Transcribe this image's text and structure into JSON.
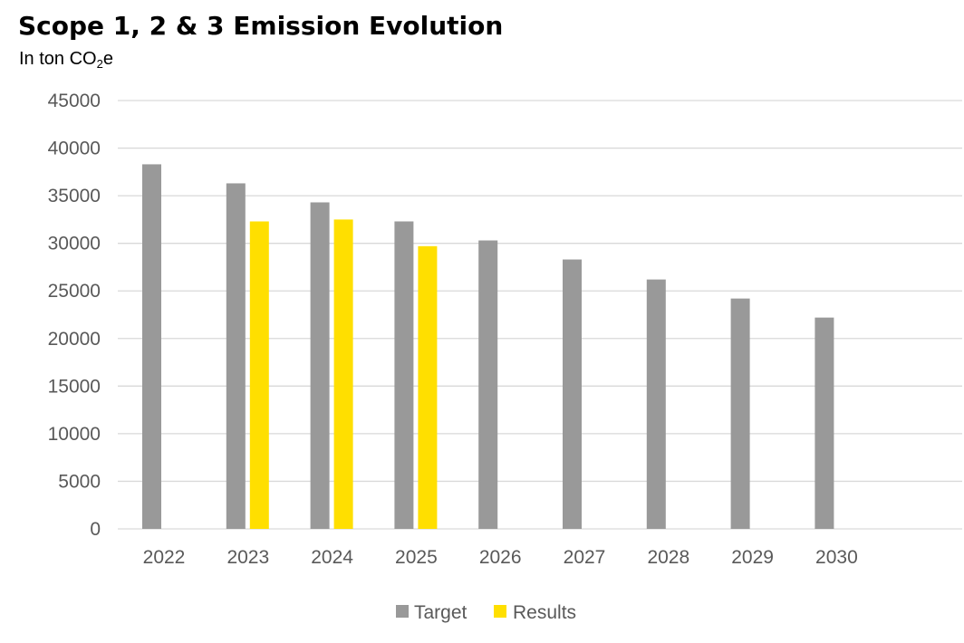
{
  "chart_data": {
    "type": "bar",
    "title": "Scope 1, 2 & 3 Emission Evolution",
    "subtitle": {
      "prefix": "In ton CO",
      "subscript": "2",
      "suffix": "e"
    },
    "xlabel": "",
    "ylabel": "",
    "ylim": [
      0,
      45000
    ],
    "yticks": [
      0,
      5000,
      10000,
      15000,
      20000,
      25000,
      30000,
      35000,
      40000,
      45000
    ],
    "grid": true,
    "legend_position": "bottom",
    "categories": [
      "2022",
      "2023",
      "2024",
      "2025",
      "2026",
      "2027",
      "2028",
      "2029",
      "2030"
    ],
    "series": [
      {
        "name": "Target",
        "color": "#999999",
        "values": [
          38300,
          36300,
          34300,
          32300,
          30300,
          28300,
          26200,
          24200,
          22200
        ]
      },
      {
        "name": "Results",
        "color": "#ffdf00",
        "values": [
          null,
          32300,
          32500,
          29700,
          null,
          null,
          null,
          null,
          null
        ]
      }
    ]
  }
}
